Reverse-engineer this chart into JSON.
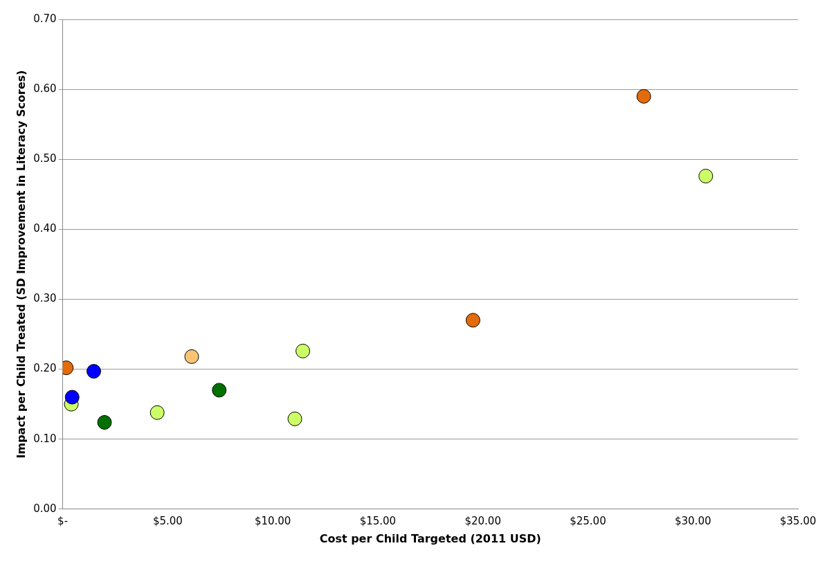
{
  "chart_data": {
    "type": "scatter",
    "xlabel": "Cost per Child Targeted (2011 USD)",
    "ylabel": "Impact per Child Treated (SD Improvement in Literacy Scores)",
    "xlim": [
      0,
      35
    ],
    "ylim": [
      0,
      0.7
    ],
    "xticks": [
      {
        "value": 0,
        "label": "$-"
      },
      {
        "value": 5,
        "label": "$5.00"
      },
      {
        "value": 10,
        "label": "$10.00"
      },
      {
        "value": 15,
        "label": "$15.00"
      },
      {
        "value": 20,
        "label": "$20.00"
      },
      {
        "value": 25,
        "label": "$25.00"
      },
      {
        "value": 30,
        "label": "$30.00"
      },
      {
        "value": 35,
        "label": "$35.00"
      }
    ],
    "yticks": [
      {
        "value": 0,
        "label": "0.00"
      },
      {
        "value": 0.1,
        "label": "0.10"
      },
      {
        "value": 0.2,
        "label": "0.20"
      },
      {
        "value": 0.3,
        "label": "0.30"
      },
      {
        "value": 0.4,
        "label": "0.40"
      },
      {
        "value": 0.5,
        "label": "0.50"
      },
      {
        "value": 0.6,
        "label": "0.60"
      },
      {
        "value": 0.7,
        "label": "0.70"
      }
    ],
    "grid": "y",
    "legend": false,
    "marker": "circle",
    "series": [
      {
        "color": "#e36c0a",
        "x": [
          0.17,
          27.66,
          19.53
        ],
        "values": [
          0.202,
          0.59,
          0.27
        ]
      },
      {
        "color": "#0000ff",
        "x": [
          0.45,
          1.48
        ],
        "values": [
          0.16,
          0.197
        ]
      },
      {
        "color": "#ccff66",
        "x": [
          30.61,
          11.43,
          11.05,
          4.5,
          0.41
        ],
        "values": [
          0.476,
          0.226,
          0.129,
          0.138,
          0.15
        ]
      },
      {
        "color": "#007000",
        "x": [
          1.99,
          7.45
        ],
        "values": [
          0.124,
          0.17
        ]
      },
      {
        "color": "#fac472",
        "x": [
          6.14
        ],
        "values": [
          0.218
        ]
      }
    ]
  }
}
